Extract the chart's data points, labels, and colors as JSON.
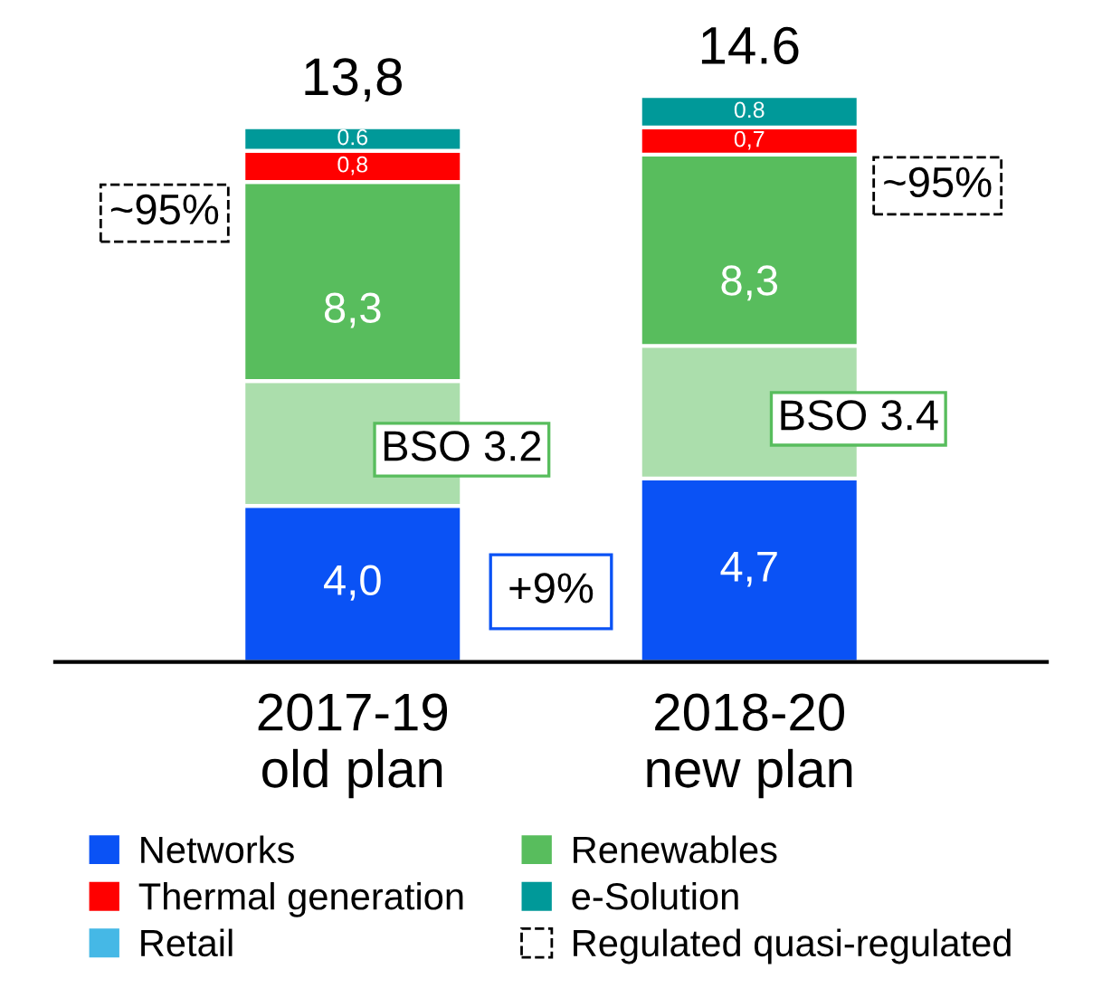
{
  "chart_data": {
    "type": "bar",
    "stacked": true,
    "legend": "bottom",
    "categories": [
      "2017-19\nold plan",
      "2018-20\nnew plan"
    ],
    "series": [
      {
        "name": "Networks",
        "color": "#0a52f5",
        "values": [
          4.0,
          4.7
        ],
        "value_labels": [
          "4,0",
          "4,7"
        ]
      },
      {
        "color": "#abdeac",
        "values": [
          3.2,
          3.4
        ],
        "value_labels": [
          "BSO 3.2",
          "BSO 3.4"
        ]
      },
      {
        "name": "Renewables",
        "color": "#58bd5d",
        "values": [
          5.1,
          4.9
        ]
      },
      {
        "name": "Thermal generation",
        "color": "#ff0000",
        "values": [
          0.8,
          0.7
        ],
        "value_labels": [
          "0,8",
          "0,7"
        ]
      },
      {
        "name": "e-Solution",
        "color": "#009999",
        "values": [
          0.6,
          0.8
        ],
        "value_labels": [
          "0.6",
          "0.8"
        ]
      },
      {
        "name": "Retail",
        "color": "#45b8e6",
        "values": [
          null,
          null
        ]
      },
      {
        "name": "Regulated quasi-regulated",
        "line_style": "dashed",
        "values": [
          null,
          null
        ]
      }
    ],
    "totals": [
      "13,8",
      "14.6"
    ],
    "annotations": [
      "8,3",
      "8,3",
      "~95%",
      "~95%",
      "+9%"
    ]
  }
}
